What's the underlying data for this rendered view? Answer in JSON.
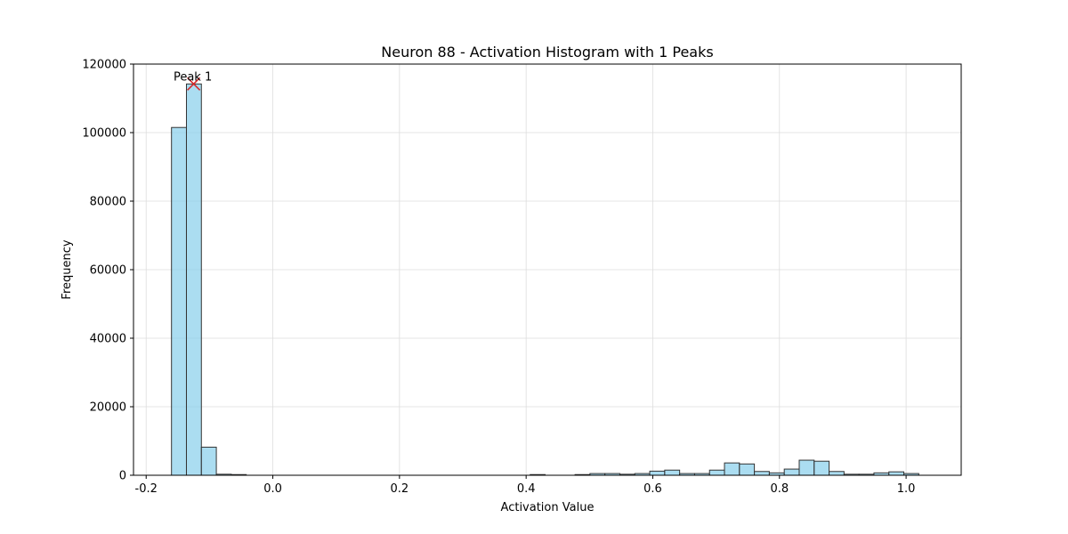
{
  "chart_data": {
    "type": "bar",
    "title": "Neuron 88 - Activation Histogram with 1 Peaks",
    "xlabel": "Activation Value",
    "ylabel": "Frequency",
    "xlim": [
      -0.22,
      1.087
    ],
    "ylim": [
      0,
      120000
    ],
    "xticks": [
      "-0.2",
      "0.0",
      "0.2",
      "0.4",
      "0.6",
      "0.8",
      "1.0"
    ],
    "xtick_values": [
      -0.2,
      0.0,
      0.2,
      0.4,
      0.6,
      0.8,
      1.0
    ],
    "yticks": [
      "0",
      "20000",
      "40000",
      "60000",
      "80000",
      "100000",
      "120000"
    ],
    "ytick_values": [
      0,
      20000,
      40000,
      60000,
      80000,
      100000,
      120000
    ],
    "grid": true,
    "bar_color": "#87CEEB",
    "edge_color": "#333333",
    "peak_color": "#d62728",
    "bins": {
      "start": -0.16,
      "width": 0.0236,
      "values": [
        101500,
        114200,
        8200,
        300,
        200,
        0,
        0,
        0,
        0,
        0,
        0,
        0,
        0,
        0,
        0,
        0,
        0,
        0,
        0,
        0,
        0,
        0,
        0,
        0,
        200,
        0,
        0,
        200,
        500,
        500,
        300,
        500,
        1200,
        1500,
        500,
        500,
        1500,
        3600,
        3300,
        1100,
        700,
        1800,
        4400,
        4100,
        1100,
        300,
        300,
        700,
        1000,
        500
      ]
    },
    "peaks": [
      {
        "label": "Peak 1",
        "x": -0.125,
        "y": 114200
      }
    ]
  }
}
